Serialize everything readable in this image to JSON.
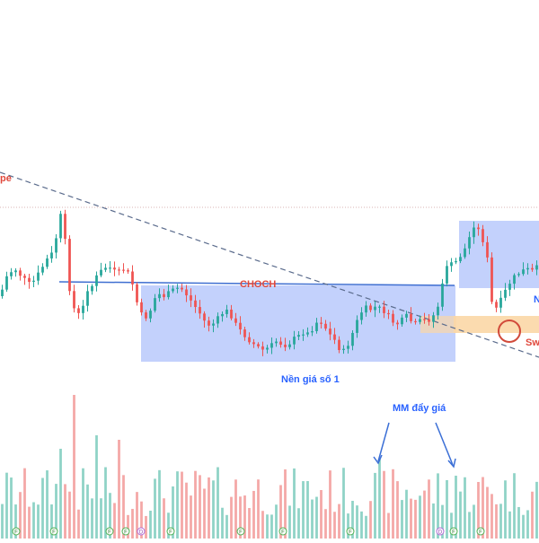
{
  "chart_data": {
    "type": "candlestick",
    "title": "",
    "xlabel": "",
    "ylabel": "",
    "grid": false,
    "colors": {
      "up": "#26a69a",
      "down": "#ef5350",
      "up_volume": "#8fd3c6",
      "down_volume": "#f4a7a6",
      "range_box": "#b9c9fb",
      "demand_zone": "#fbd7a6",
      "choch_line": "#3f6fd1",
      "trendline": "#5a6b8c",
      "label_red": "#e0483c",
      "label_blue": "#2962ff",
      "arrow": "#3b6fd6"
    },
    "annotations": {
      "choch": "CHOCH",
      "range_label": "Nền giá số 1",
      "volume_note": "MM đẩy giá",
      "trendline_label_cut": "pe",
      "right_label_cut": "N",
      "swing_label_cut": "Sw"
    },
    "volume_markers": [
      "F",
      "F",
      "F",
      "F",
      "D",
      "F",
      "F",
      "F",
      "F",
      "D",
      "F",
      "F"
    ],
    "candle_count": 120,
    "trend_points": [
      [
        0,
        330
      ],
      [
        3,
        305
      ],
      [
        6,
        300
      ],
      [
        9,
        310
      ],
      [
        12,
        318
      ],
      [
        15,
        305
      ],
      [
        18,
        290
      ],
      [
        21,
        280
      ],
      [
        22,
        262
      ],
      [
        23,
        244
      ],
      [
        24,
        238
      ],
      [
        25,
        258
      ],
      [
        26,
        290
      ],
      [
        27,
        320
      ],
      [
        28,
        338
      ],
      [
        30,
        352
      ],
      [
        32,
        346
      ],
      [
        34,
        322
      ],
      [
        36,
        318
      ],
      [
        38,
        306
      ],
      [
        40,
        300
      ],
      [
        42,
        296
      ],
      [
        44,
        302
      ],
      [
        46,
        304
      ],
      [
        48,
        300
      ],
      [
        50,
        305
      ],
      [
        52,
        320
      ],
      [
        54,
        346
      ],
      [
        56,
        355
      ],
      [
        58,
        350
      ],
      [
        60,
        333
      ],
      [
        62,
        328
      ],
      [
        64,
        330
      ],
      [
        66,
        326
      ],
      [
        68,
        322
      ],
      [
        70,
        320
      ],
      [
        72,
        326
      ],
      [
        74,
        334
      ],
      [
        76,
        342
      ],
      [
        78,
        350
      ],
      [
        80,
        360
      ],
      [
        82,
        363
      ],
      [
        84,
        358
      ],
      [
        86,
        350
      ],
      [
        88,
        346
      ],
      [
        90,
        352
      ],
      [
        92,
        363
      ],
      [
        94,
        370
      ],
      [
        96,
        376
      ],
      [
        98,
        382
      ],
      [
        100,
        386
      ],
      [
        102,
        390
      ],
      [
        104,
        388
      ],
      [
        106,
        384
      ],
      [
        108,
        379
      ],
      [
        110,
        385
      ],
      [
        112,
        384
      ],
      [
        114,
        378
      ],
      [
        116,
        375
      ],
      [
        118,
        370
      ],
      [
        120,
        372
      ],
      [
        122,
        364
      ],
      [
        124,
        356
      ],
      [
        126,
        362
      ],
      [
        128,
        372
      ],
      [
        130,
        378
      ],
      [
        132,
        388
      ],
      [
        134,
        392
      ],
      [
        136,
        380
      ],
      [
        138,
        365
      ],
      [
        140,
        350
      ],
      [
        142,
        343
      ],
      [
        144,
        345
      ],
      [
        146,
        342
      ],
      [
        148,
        344
      ],
      [
        150,
        348
      ],
      [
        152,
        356
      ],
      [
        154,
        362
      ],
      [
        156,
        358
      ],
      [
        158,
        352
      ],
      [
        160,
        358
      ],
      [
        162,
        362
      ],
      [
        164,
        356
      ],
      [
        166,
        358
      ],
      [
        168,
        354
      ],
      [
        170,
        346
      ],
      [
        172,
        320
      ],
      [
        174,
        293
      ],
      [
        176,
        295
      ],
      [
        178,
        290
      ],
      [
        180,
        281
      ],
      [
        182,
        272
      ],
      [
        183,
        260
      ],
      [
        184,
        250
      ],
      [
        185,
        252
      ],
      [
        187,
        260
      ],
      [
        189,
        278
      ],
      [
        190,
        296
      ],
      [
        191,
        332
      ],
      [
        192,
        347
      ],
      [
        193,
        344
      ],
      [
        195,
        334
      ],
      [
        197,
        322
      ],
      [
        199,
        312
      ],
      [
        201,
        306
      ],
      [
        203,
        302
      ],
      [
        205,
        300
      ],
      [
        207,
        302
      ],
      [
        209,
        298
      ]
    ]
  }
}
